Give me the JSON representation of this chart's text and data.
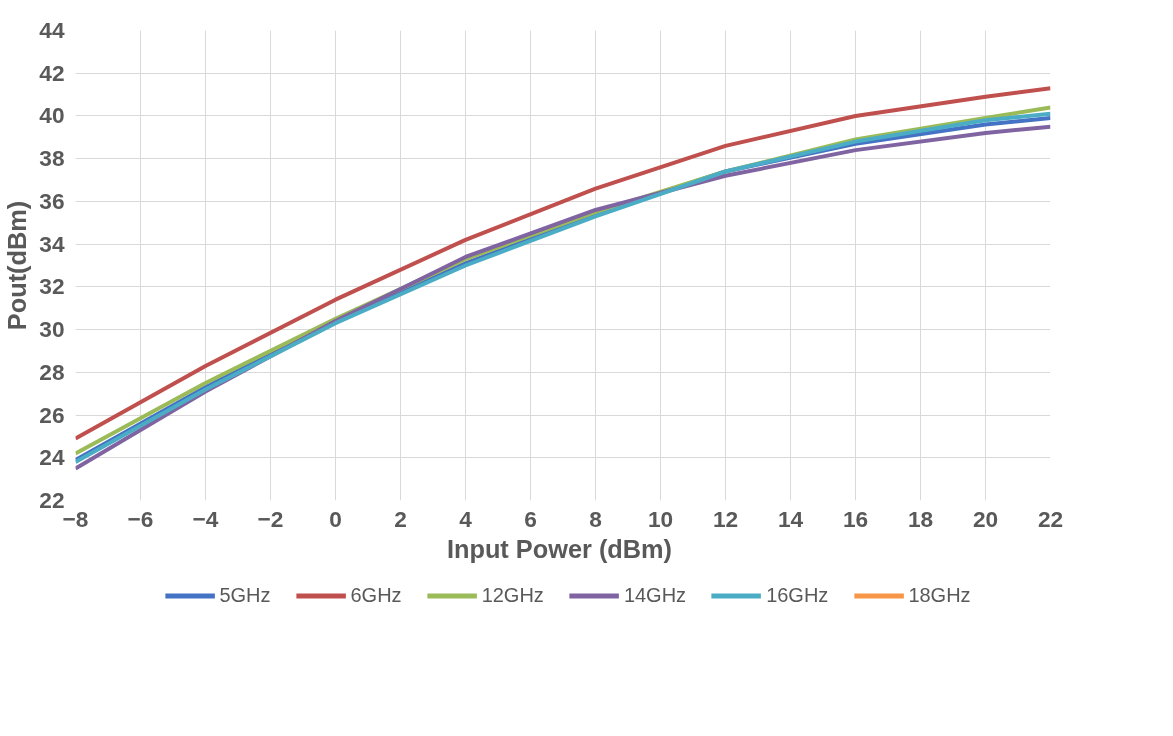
{
  "chart_data": {
    "type": "line",
    "xlabel": "Input  Power (dBm)",
    "ylabel": "Pout(dBm)",
    "x": [
      -8,
      -4,
      0,
      4,
      8,
      12,
      16,
      20,
      22
    ],
    "series": [
      {
        "name": "5GHz",
        "color": "#4472c4",
        "values": [
          23.9,
          27.3,
          30.4,
          33.1,
          35.4,
          37.4,
          38.7,
          39.6,
          39.9
        ]
      },
      {
        "name": "6GHz",
        "color": "#c0504d",
        "values": [
          24.9,
          28.3,
          31.4,
          34.2,
          36.6,
          38.6,
          40.0,
          40.9,
          41.3
        ]
      },
      {
        "name": "12GHz",
        "color": "#9bbb59",
        "values": [
          24.2,
          27.5,
          30.5,
          33.3,
          35.5,
          37.4,
          38.9,
          39.9,
          40.4
        ]
      },
      {
        "name": "14GHz",
        "color": "#8064a2",
        "values": [
          23.5,
          27.1,
          30.4,
          33.4,
          35.6,
          37.2,
          38.4,
          39.2,
          39.5
        ]
      },
      {
        "name": "16GHz",
        "color": "#4bacc6",
        "values": [
          23.8,
          27.2,
          30.3,
          33.0,
          35.3,
          37.4,
          38.8,
          39.8,
          40.1
        ]
      },
      {
        "name": "18GHz",
        "color": "#f79646",
        "values": [
          null,
          null,
          null,
          null,
          null,
          null,
          null,
          null,
          null
        ]
      }
    ],
    "xlim": [
      -8,
      22
    ],
    "xticks": [
      -8,
      -6,
      -4,
      -2,
      0,
      2,
      4,
      6,
      8,
      10,
      12,
      14,
      16,
      18,
      20,
      22
    ],
    "ylim": [
      22,
      44
    ],
    "yticks": [
      22,
      24,
      26,
      28,
      30,
      32,
      34,
      36,
      38,
      40,
      42,
      44
    ],
    "grid": true,
    "legend": "bottom",
    "marker": "none",
    "line_style": "solid"
  }
}
